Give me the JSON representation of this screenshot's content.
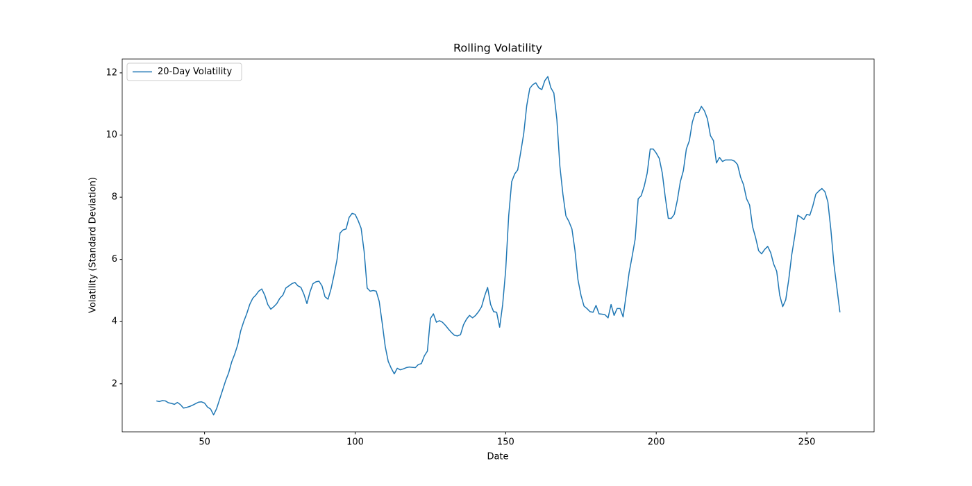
{
  "chart_data": {
    "type": "line",
    "title": "Rolling Volatility",
    "x_label": "Date",
    "y_label": "Volatility (Standard Deviation)",
    "x": [
      34,
      35,
      36,
      37,
      38,
      39,
      40,
      41,
      42,
      43,
      44,
      45,
      46,
      47,
      48,
      49,
      50,
      51,
      52,
      53,
      54,
      55,
      56,
      57,
      58,
      59,
      60,
      61,
      62,
      63,
      64,
      65,
      66,
      67,
      68,
      69,
      70,
      71,
      72,
      73,
      74,
      75,
      76,
      77,
      78,
      79,
      80,
      81,
      82,
      83,
      84,
      85,
      86,
      87,
      88,
      89,
      90,
      91,
      92,
      93,
      94,
      95,
      96,
      97,
      98,
      99,
      100,
      101,
      102,
      103,
      104,
      105,
      106,
      107,
      108,
      109,
      110,
      111,
      112,
      113,
      114,
      115,
      116,
      117,
      118,
      119,
      120,
      121,
      122,
      123,
      124,
      125,
      126,
      127,
      128,
      129,
      130,
      131,
      132,
      133,
      134,
      135,
      136,
      137,
      138,
      139,
      140,
      141,
      142,
      143,
      144,
      145,
      146,
      147,
      148,
      149,
      150,
      151,
      152,
      153,
      154,
      155,
      156,
      157,
      158,
      159,
      160,
      161,
      162,
      163,
      164,
      165,
      166,
      167,
      168,
      169,
      170,
      171,
      172,
      173,
      174,
      175,
      176,
      177,
      178,
      179,
      180,
      181,
      182,
      183,
      184,
      185,
      186,
      187,
      188,
      189,
      190,
      191,
      192,
      193,
      194,
      195,
      196,
      197,
      198,
      199,
      200,
      201,
      202,
      203,
      204,
      205,
      206,
      207,
      208,
      209,
      210,
      211,
      212,
      213,
      214,
      215,
      216,
      217,
      218,
      219,
      220,
      221,
      222,
      223,
      224,
      225,
      226,
      227,
      228,
      229,
      230,
      231,
      232,
      233,
      234,
      235,
      236,
      237,
      238,
      239,
      240,
      241,
      242,
      243,
      244,
      245,
      246,
      247,
      248,
      249,
      250,
      251,
      252,
      253,
      254,
      255,
      256,
      257,
      258,
      259,
      260,
      261
    ],
    "series": [
      {
        "name": "20-Day Volatility",
        "color": "#1f77b4",
        "values": [
          1.45,
          1.43,
          1.46,
          1.45,
          1.39,
          1.37,
          1.34,
          1.4,
          1.33,
          1.22,
          1.24,
          1.27,
          1.31,
          1.36,
          1.41,
          1.42,
          1.38,
          1.25,
          1.19,
          1.0,
          1.2,
          1.5,
          1.8,
          2.1,
          2.35,
          2.7,
          2.95,
          3.25,
          3.7,
          4.0,
          4.25,
          4.55,
          4.75,
          4.85,
          4.98,
          5.05,
          4.85,
          4.55,
          4.4,
          4.48,
          4.58,
          4.75,
          4.85,
          5.08,
          5.15,
          5.22,
          5.26,
          5.15,
          5.1,
          4.88,
          4.58,
          4.95,
          5.22,
          5.28,
          5.3,
          5.15,
          4.8,
          4.72,
          5.05,
          5.5,
          6.0,
          6.85,
          6.95,
          6.98,
          7.35,
          7.48,
          7.45,
          7.25,
          7.0,
          6.25,
          5.08,
          4.98,
          5.0,
          4.98,
          4.65,
          3.95,
          3.2,
          2.72,
          2.5,
          2.32,
          2.5,
          2.45,
          2.48,
          2.52,
          2.54,
          2.53,
          2.52,
          2.62,
          2.65,
          2.9,
          3.05,
          4.1,
          4.25,
          3.98,
          4.03,
          3.98,
          3.88,
          3.76,
          3.65,
          3.56,
          3.54,
          3.58,
          3.9,
          4.08,
          4.2,
          4.12,
          4.2,
          4.32,
          4.48,
          4.82,
          5.1,
          4.55,
          4.32,
          4.3,
          3.82,
          4.55,
          5.65,
          7.4,
          8.5,
          8.75,
          8.88,
          9.45,
          10.05,
          10.95,
          11.5,
          11.62,
          11.68,
          11.52,
          11.46,
          11.75,
          11.88,
          11.52,
          11.35,
          10.5,
          9.0,
          8.1,
          7.4,
          7.22,
          6.98,
          6.3,
          5.35,
          4.85,
          4.5,
          4.42,
          4.32,
          4.3,
          4.52,
          4.25,
          4.24,
          4.22,
          4.12,
          4.55,
          4.2,
          4.42,
          4.42,
          4.15,
          4.85,
          5.58,
          6.1,
          6.65,
          7.95,
          8.05,
          8.35,
          8.78,
          9.55,
          9.55,
          9.42,
          9.25,
          8.78,
          8.0,
          7.32,
          7.32,
          7.45,
          7.9,
          8.5,
          8.85,
          9.55,
          9.82,
          10.42,
          10.72,
          10.72,
          10.92,
          10.78,
          10.52,
          9.98,
          9.82,
          9.1,
          9.28,
          9.15,
          9.2,
          9.2,
          9.2,
          9.16,
          9.05,
          8.65,
          8.4,
          7.95,
          7.75,
          7.05,
          6.7,
          6.28,
          6.18,
          6.32,
          6.42,
          6.22,
          5.85,
          5.62,
          4.85,
          4.48,
          4.7,
          5.35,
          6.15,
          6.75,
          7.42,
          7.36,
          7.28,
          7.45,
          7.42,
          7.72,
          8.1,
          8.2,
          8.28,
          8.18,
          7.85,
          6.95,
          5.85,
          5.08,
          4.3
        ]
      }
    ],
    "xlim": [
      22.65,
      272.35
    ],
    "ylim": [
      0.455,
      12.445
    ],
    "xticks": [
      50,
      100,
      150,
      200,
      250
    ],
    "yticks": [
      2,
      4,
      6,
      8,
      10,
      12
    ],
    "legend": "upper left"
  }
}
